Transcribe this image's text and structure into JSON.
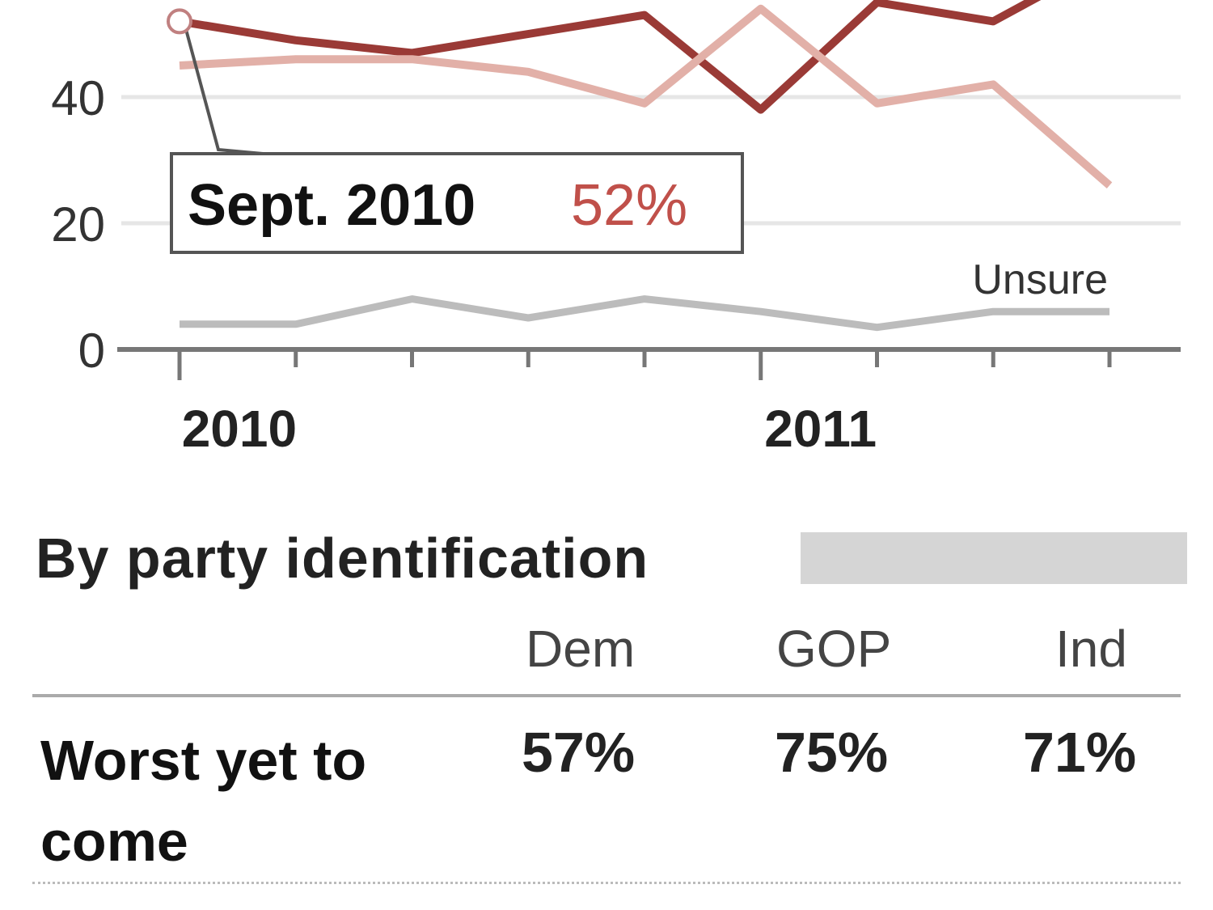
{
  "chart_data": {
    "type": "line",
    "x_tick_count": 9,
    "x_labels": [
      {
        "label": "2010",
        "index": 0.5
      },
      {
        "label": "2011",
        "index": 5.5
      }
    ],
    "yticks": [
      0,
      20,
      40
    ],
    "ylim": [
      0,
      60
    ],
    "grid": true,
    "series": [
      {
        "values": [
          52,
          49,
          47,
          50,
          53,
          38,
          55,
          52,
          62
        ],
        "color": "#9a3a36"
      },
      {
        "values": [
          45,
          46,
          46,
          44,
          39,
          54,
          39,
          42,
          26
        ],
        "color": "#e2b0a8"
      },
      {
        "name": "Unsure",
        "values": [
          4,
          4,
          8,
          5,
          8,
          6,
          3.5,
          6,
          6
        ],
        "color": "#bcbcbc"
      }
    ],
    "annotation": {
      "date": "Sept. 2010",
      "value": "52%",
      "index": 0,
      "series": 0,
      "value_color": "#c0504a"
    }
  },
  "table": {
    "title": "By party identification",
    "columns": [
      "Dem",
      "GOP",
      "Ind"
    ],
    "rows": [
      {
        "label": "Worst yet to come",
        "values": [
          "57%",
          "75%",
          "71%"
        ]
      }
    ]
  }
}
